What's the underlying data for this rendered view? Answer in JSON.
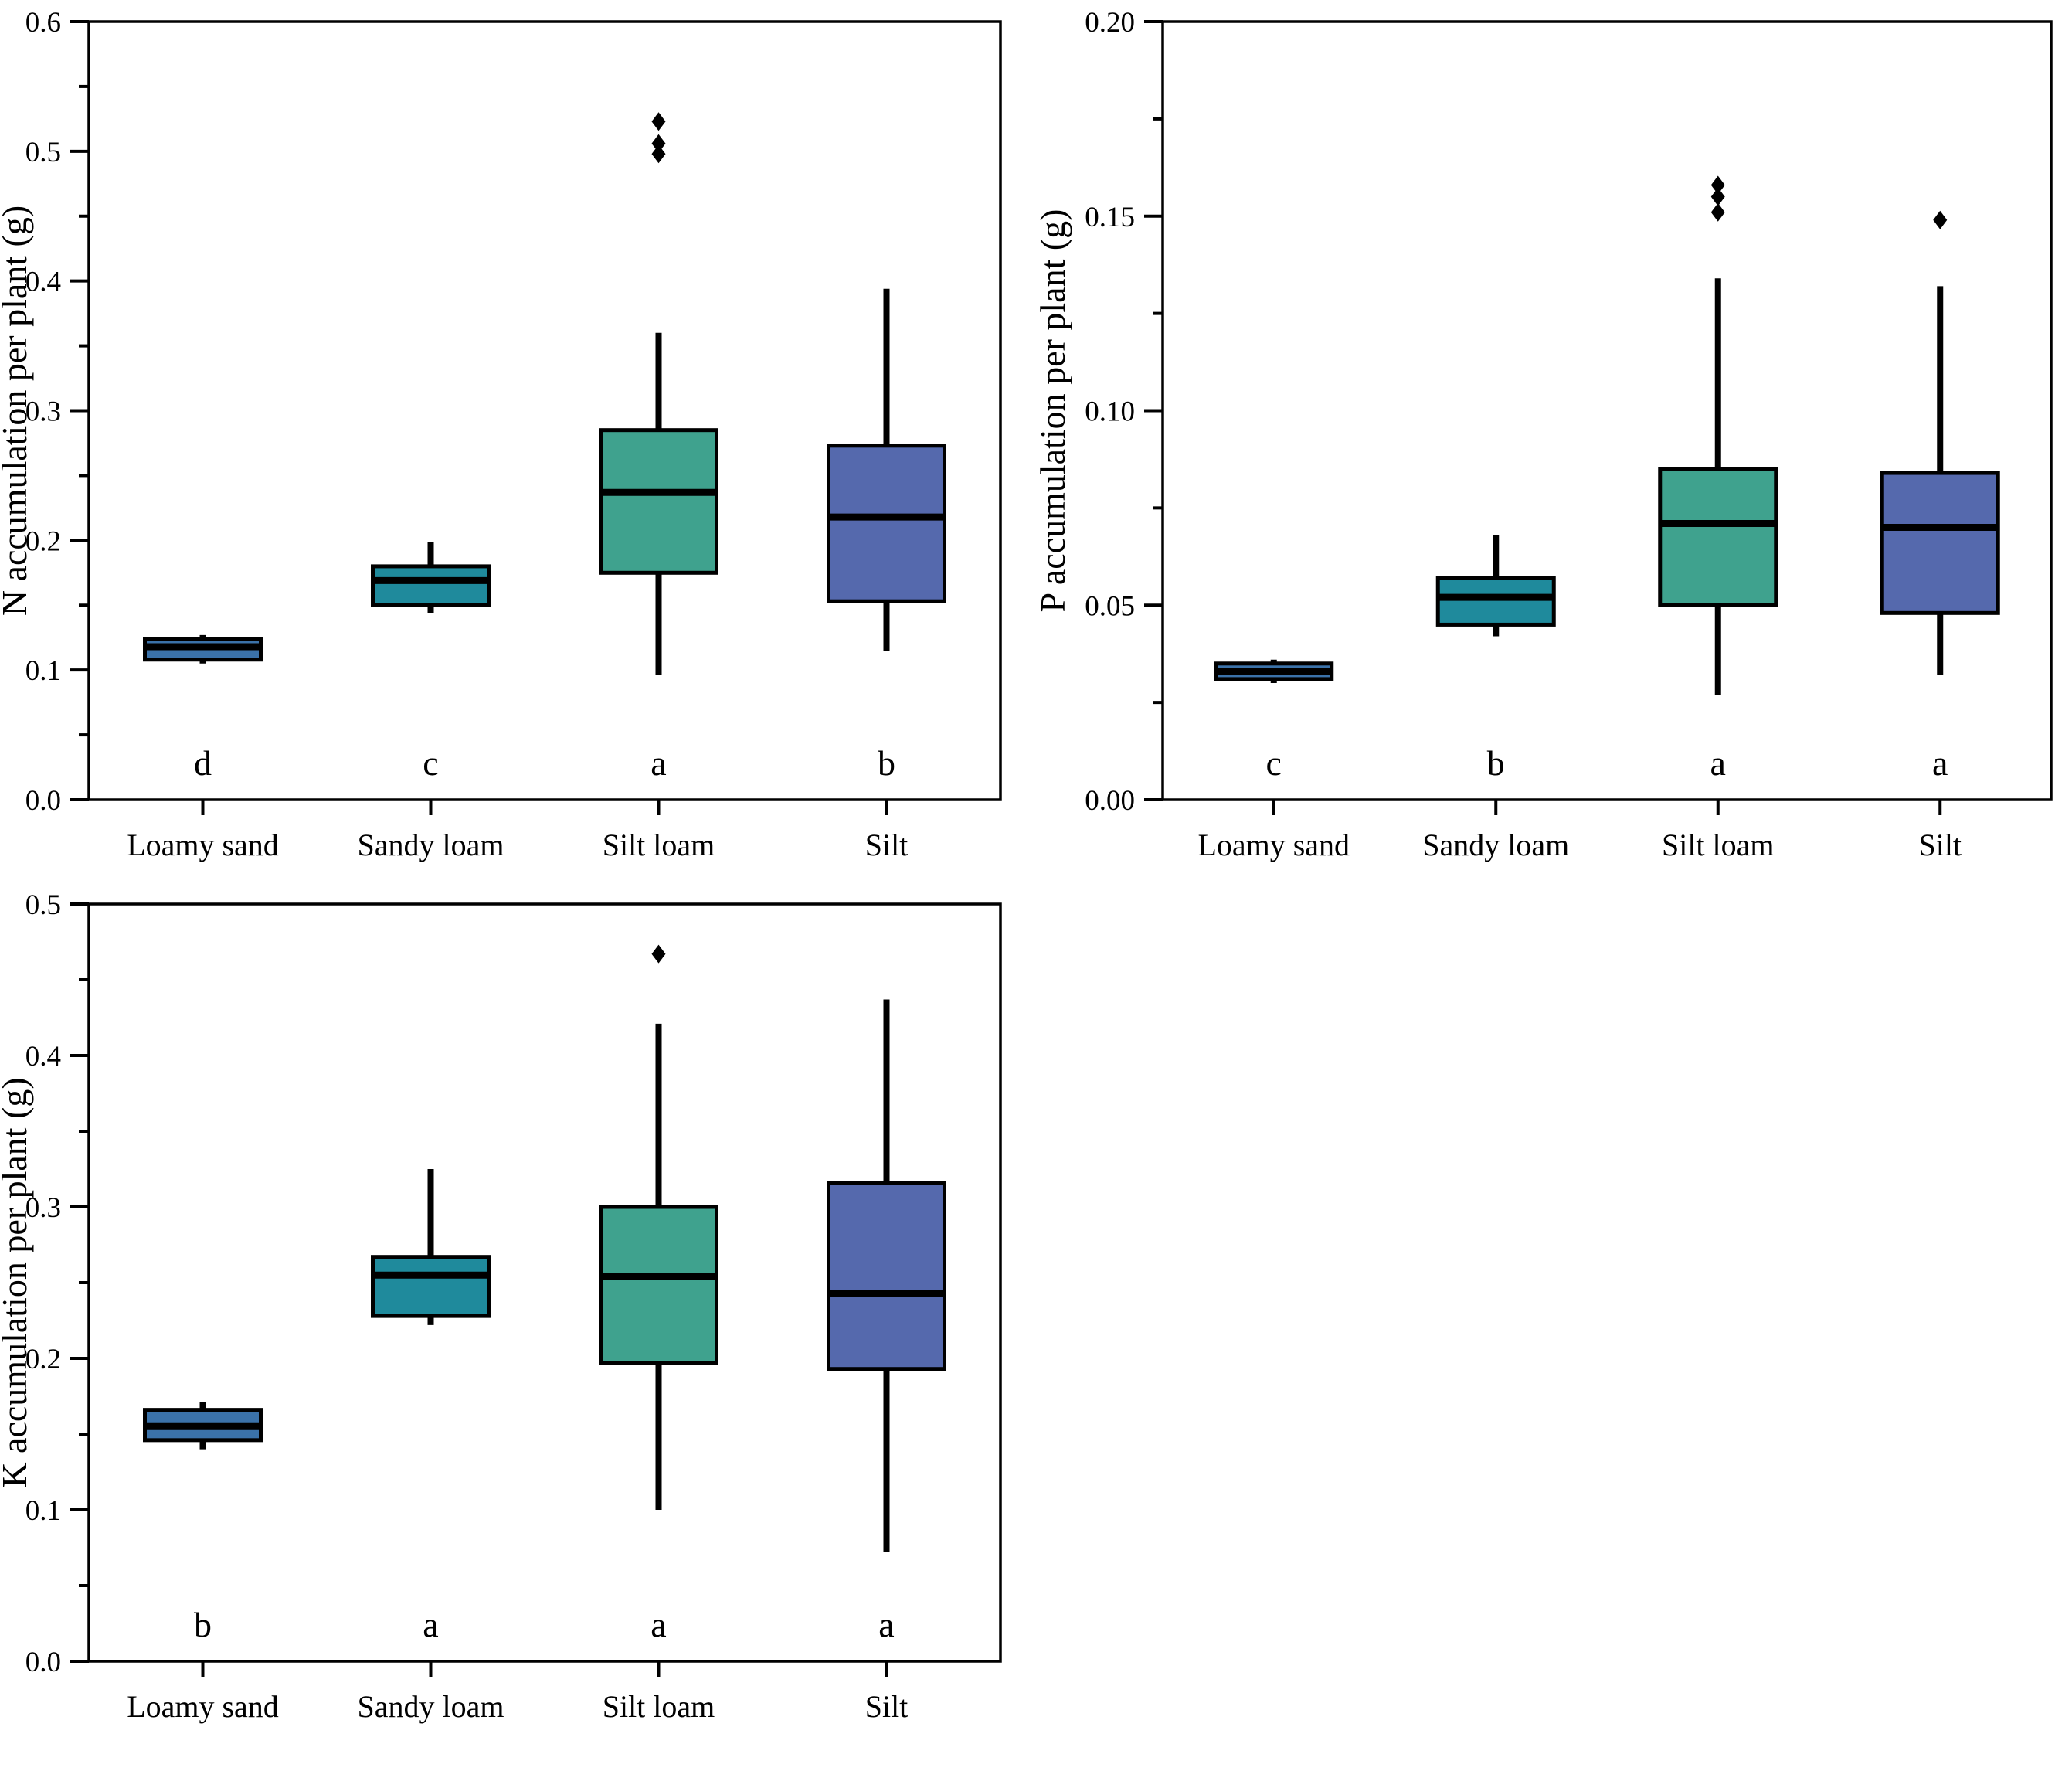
{
  "figure": {
    "background": "#ffffff",
    "description": "Three box plots of N, P and K accumulation per plant by soil texture",
    "palette": [
      "#3B72A9",
      "#1F8A9C",
      "#3FA28E",
      "#5569AD"
    ]
  },
  "chart_data": [
    {
      "type": "box",
      "title": "",
      "xlabel": "",
      "ylabel": "N accumulation per plant (g)",
      "ylim": [
        0.0,
        0.6
      ],
      "ytick_values": [
        0.0,
        0.1,
        0.2,
        0.3,
        0.4,
        0.5,
        0.6
      ],
      "ytick_labels": [
        "0.0",
        "0.1",
        "0.2",
        "0.3",
        "0.4",
        "0.5",
        "0.6"
      ],
      "minor_step": 0.05,
      "grid": false,
      "categories": [
        "Loamy sand",
        "Sandy loam",
        "Silt loam",
        "Silt"
      ],
      "sig_letters": [
        "d",
        "c",
        "a",
        "b"
      ],
      "boxes": [
        {
          "label": "Loamy sand",
          "whislo": 0.105,
          "q1": 0.108,
          "med": 0.118,
          "q3": 0.124,
          "whishi": 0.127,
          "outliers": [],
          "color": "#3B72A9"
        },
        {
          "label": "Sandy loam",
          "whislo": 0.144,
          "q1": 0.15,
          "med": 0.169,
          "q3": 0.18,
          "whishi": 0.199,
          "outliers": [],
          "color": "#1F8A9C"
        },
        {
          "label": "Silt loam",
          "whislo": 0.096,
          "q1": 0.175,
          "med": 0.237,
          "q3": 0.285,
          "whishi": 0.36,
          "outliers": [
            0.523,
            0.506,
            0.498
          ],
          "color": "#3FA28E"
        },
        {
          "label": "Silt",
          "whislo": 0.115,
          "q1": 0.153,
          "med": 0.218,
          "q3": 0.273,
          "whishi": 0.394,
          "outliers": [],
          "color": "#5569AD"
        }
      ]
    },
    {
      "type": "box",
      "title": "",
      "xlabel": "",
      "ylabel": "P accumulation per plant (g)",
      "ylim": [
        0.0,
        0.2
      ],
      "ytick_values": [
        0.0,
        0.05,
        0.1,
        0.15,
        0.2
      ],
      "ytick_labels": [
        "0.00",
        "0.05",
        "0.10",
        "0.15",
        "0.20"
      ],
      "minor_step": 0.025,
      "grid": false,
      "categories": [
        "Loamy sand",
        "Sandy loam",
        "Silt loam",
        "Silt"
      ],
      "sig_letters": [
        "c",
        "b",
        "a",
        "a"
      ],
      "boxes": [
        {
          "label": "Loamy sand",
          "whislo": 0.03,
          "q1": 0.031,
          "med": 0.033,
          "q3": 0.035,
          "whishi": 0.036,
          "outliers": [],
          "color": "#3B72A9"
        },
        {
          "label": "Sandy loam",
          "whislo": 0.042,
          "q1": 0.045,
          "med": 0.052,
          "q3": 0.057,
          "whishi": 0.068,
          "outliers": [],
          "color": "#1F8A9C"
        },
        {
          "label": "Silt loam",
          "whislo": 0.027,
          "q1": 0.05,
          "med": 0.071,
          "q3": 0.085,
          "whishi": 0.134,
          "outliers": [
            0.158,
            0.155,
            0.151
          ],
          "color": "#3FA28E"
        },
        {
          "label": "Silt",
          "whislo": 0.032,
          "q1": 0.048,
          "med": 0.07,
          "q3": 0.084,
          "whishi": 0.132,
          "outliers": [
            0.149
          ],
          "color": "#5569AD"
        }
      ]
    },
    {
      "type": "box",
      "title": "",
      "xlabel": "",
      "ylabel": "K accumulation per plant (g)",
      "ylim": [
        0.0,
        0.5
      ],
      "ytick_values": [
        0.0,
        0.1,
        0.2,
        0.3,
        0.4,
        0.5
      ],
      "ytick_labels": [
        "0.0",
        "0.1",
        "0.2",
        "0.3",
        "0.4",
        "0.5"
      ],
      "minor_step": 0.05,
      "grid": false,
      "categories": [
        "Loamy sand",
        "Sandy loam",
        "Silt loam",
        "Silt"
      ],
      "sig_letters": [
        "b",
        "a",
        "a",
        "a"
      ],
      "boxes": [
        {
          "label": "Loamy sand",
          "whislo": 0.14,
          "q1": 0.146,
          "med": 0.155,
          "q3": 0.166,
          "whishi": 0.171,
          "outliers": [],
          "color": "#3B72A9"
        },
        {
          "label": "Sandy loam",
          "whislo": 0.222,
          "q1": 0.228,
          "med": 0.255,
          "q3": 0.267,
          "whishi": 0.325,
          "outliers": [],
          "color": "#1F8A9C"
        },
        {
          "label": "Silt loam",
          "whislo": 0.1,
          "q1": 0.197,
          "med": 0.254,
          "q3": 0.3,
          "whishi": 0.421,
          "outliers": [
            0.467
          ],
          "color": "#3FA28E"
        },
        {
          "label": "Silt",
          "whislo": 0.072,
          "q1": 0.193,
          "med": 0.243,
          "q3": 0.316,
          "whishi": 0.437,
          "outliers": [],
          "color": "#5569AD"
        }
      ]
    }
  ]
}
